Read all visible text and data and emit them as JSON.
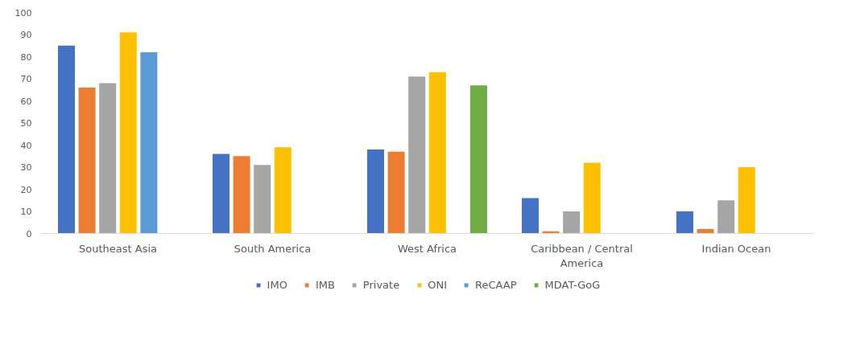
{
  "chart_data": {
    "type": "bar",
    "categories": [
      "Southeast Asia",
      "South America",
      "West Africa",
      "Caribbean / Central America",
      "Indian Ocean"
    ],
    "series": [
      {
        "name": "IMO",
        "color": "#4472c4",
        "values": [
          85,
          36,
          38,
          16,
          10
        ]
      },
      {
        "name": "IMB",
        "color": "#ed7d31",
        "values": [
          66,
          35,
          37,
          1,
          2
        ]
      },
      {
        "name": "Private",
        "color": "#a5a5a5",
        "values": [
          68,
          31,
          71,
          10,
          15
        ]
      },
      {
        "name": "ONI",
        "color": "#ffc000",
        "values": [
          91,
          39,
          73,
          32,
          30
        ]
      },
      {
        "name": "ReCAAP",
        "color": "#5b9bd5",
        "values": [
          82,
          null,
          null,
          null,
          null
        ]
      },
      {
        "name": "MDAT-GoG",
        "color": "#70ad47",
        "values": [
          null,
          null,
          67,
          null,
          null
        ]
      }
    ],
    "ylim": [
      0,
      100
    ],
    "yticks": [
      0,
      10,
      20,
      30,
      40,
      50,
      60,
      70,
      80,
      90,
      100
    ],
    "grid": false,
    "legend": "bottom"
  }
}
